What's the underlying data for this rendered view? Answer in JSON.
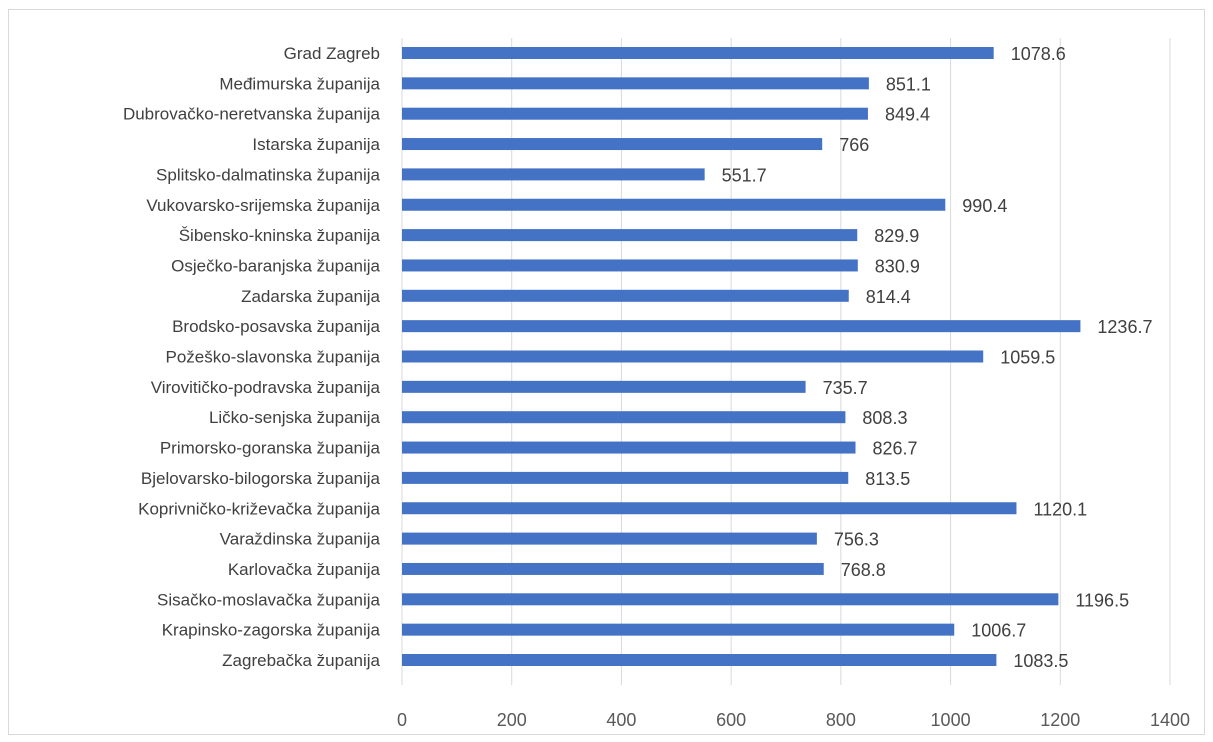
{
  "chart_data": {
    "type": "bar",
    "orientation": "horizontal",
    "categories": [
      "Grad Zagreb",
      "Međimurska županija",
      "Dubrovačko-neretvanska županija",
      "Istarska županija",
      "Splitsko-dalmatinska županija",
      "Vukovarsko-srijemska županija",
      "Šibensko-kninska županija",
      "Osječko-baranjska županija",
      "Zadarska županija",
      "Brodsko-posavska županija",
      "Požeško-slavonska županija",
      "Virovitičko-podravska županija",
      "Ličko-senjska županija",
      "Primorsko-goranska županija",
      "Bjelovarsko-bilogorska županija",
      "Koprivničko-križevačka županija",
      "Varaždinska županija",
      "Karlovačka županija",
      "Sisačko-moslavačka županija",
      "Krapinsko-zagorska županija",
      "Zagrebačka županija"
    ],
    "values": [
      1078.6,
      851.1,
      849.4,
      766,
      551.7,
      990.4,
      829.9,
      830.9,
      814.4,
      1236.7,
      1059.5,
      735.7,
      808.3,
      826.7,
      813.5,
      1120.1,
      756.3,
      768.8,
      1196.5,
      1006.7,
      1083.5
    ],
    "data_labels": [
      "1078.6",
      "851.1",
      "849.4",
      "766",
      "551.7",
      "990.4",
      "829.9",
      "830.9",
      "814.4",
      "1236.7",
      "1059.5",
      "735.7",
      "808.3",
      "826.7",
      "813.5",
      "1120.1",
      "756.3",
      "768.8",
      "1196.5",
      "1006.7",
      "1083.5"
    ],
    "xlim": [
      0,
      1400
    ],
    "x_ticks": [
      "0",
      "200",
      "400",
      "600",
      "800",
      "1000",
      "1200",
      "1400"
    ],
    "x_tick_values": [
      0,
      200,
      400,
      600,
      800,
      1000,
      1200,
      1400
    ],
    "grid": "vertical",
    "legend": "none",
    "colors": {
      "bar": "#4472c4",
      "grid": "#d9d9d9",
      "text": "#404040"
    }
  }
}
